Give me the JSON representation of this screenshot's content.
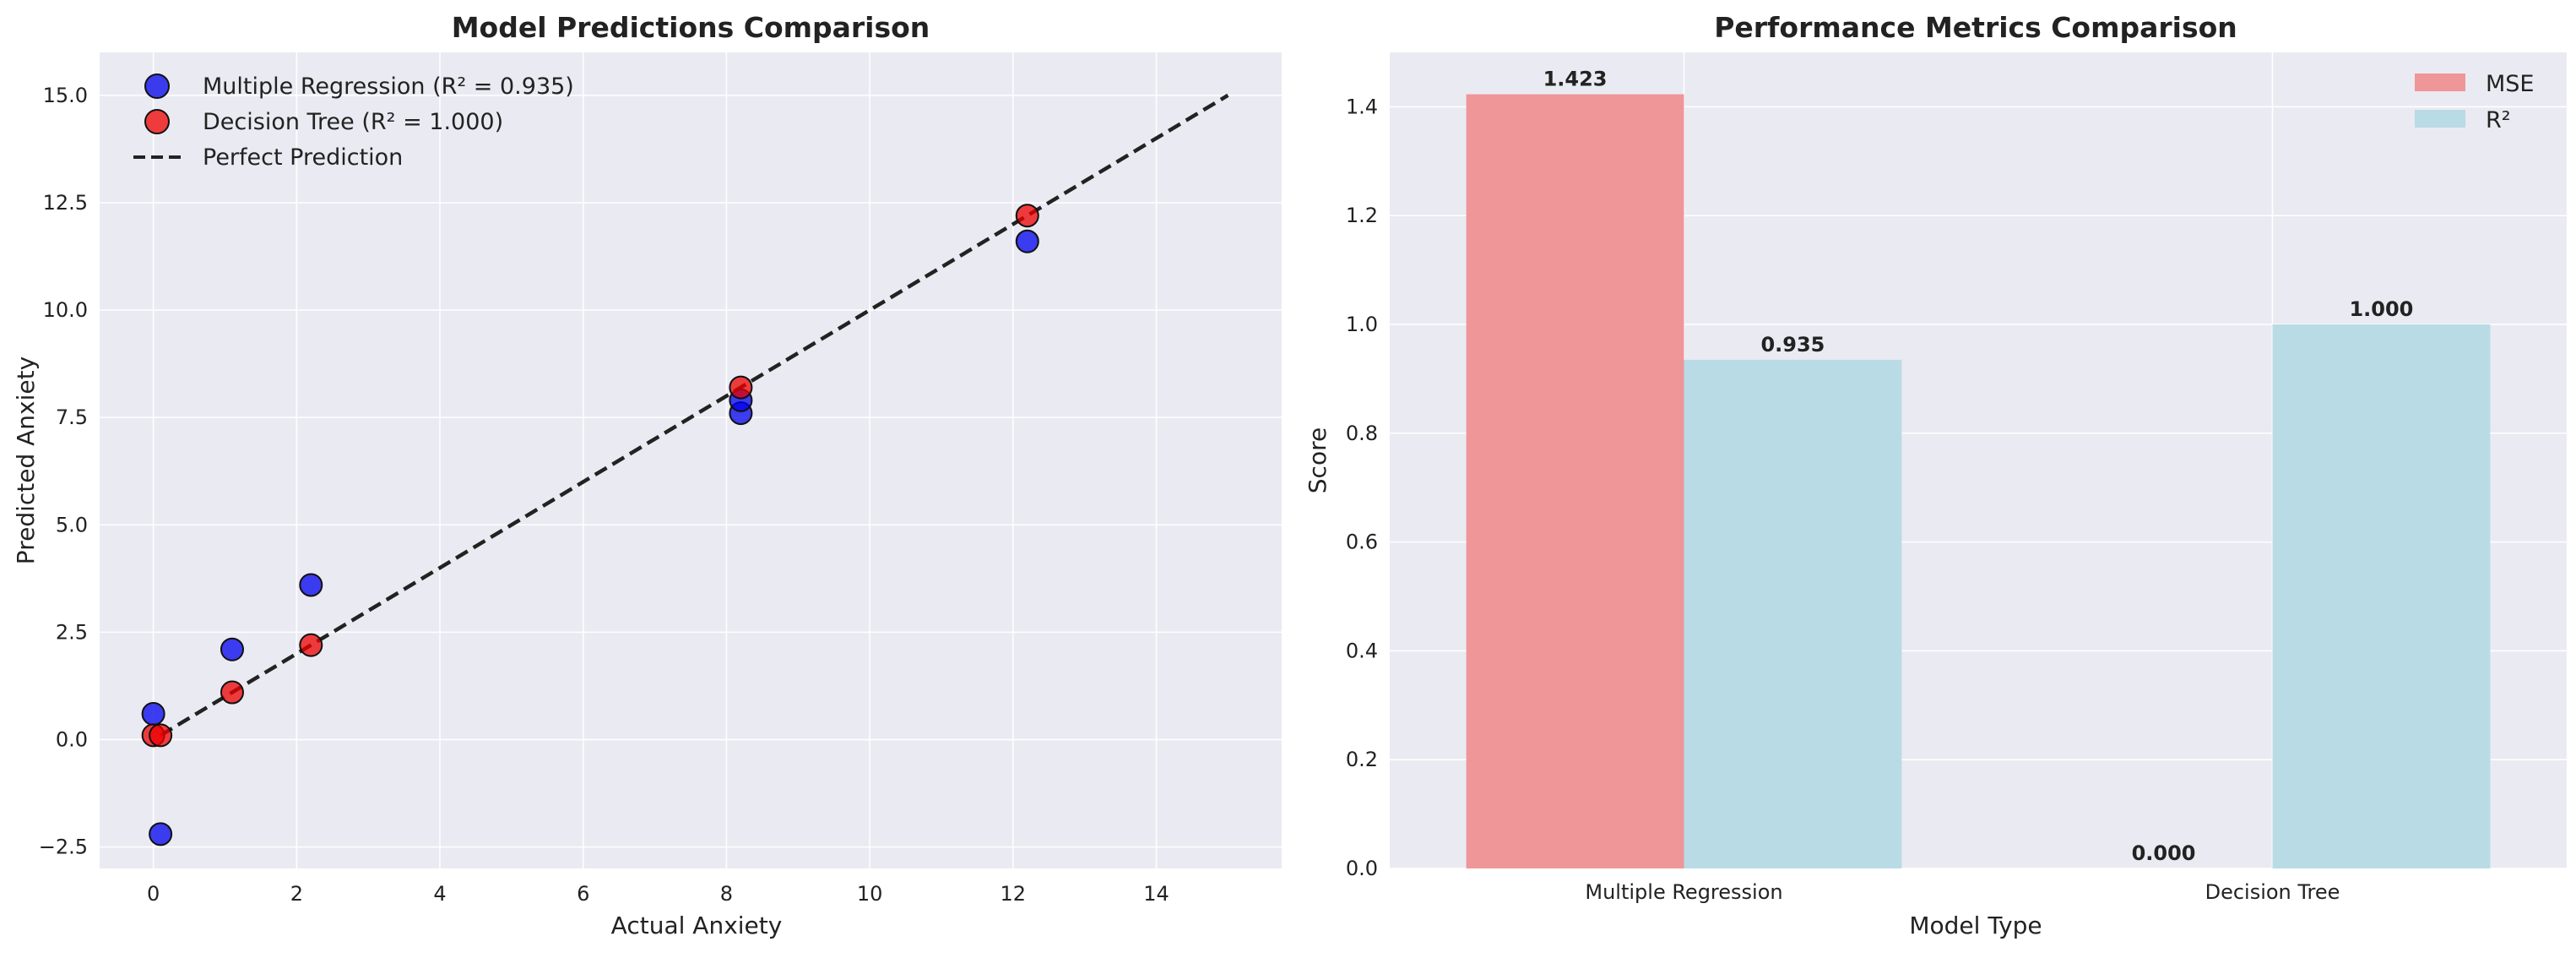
{
  "chart_data": [
    {
      "type": "scatter",
      "title": "Model Predictions Comparison",
      "xlabel": "Actual Anxiety",
      "ylabel": "Predicted Anxiety",
      "xlim": [
        -0.75,
        15.75
      ],
      "ylim": [
        -3.0,
        16.0
      ],
      "xticks": [
        0,
        2,
        4,
        6,
        8,
        10,
        12,
        14
      ],
      "yticks": [
        -2.5,
        0.0,
        2.5,
        5.0,
        7.5,
        10.0,
        12.5,
        15.0
      ],
      "xtick_labels": [
        "0",
        "2",
        "4",
        "6",
        "8",
        "10",
        "12",
        "14"
      ],
      "ytick_labels": [
        "−2.5",
        "0.0",
        "2.5",
        "5.0",
        "7.5",
        "10.0",
        "12.5",
        "15.0"
      ],
      "grid": true,
      "legend_position": "top-left",
      "series": [
        {
          "name": "Multiple Regression (R² = 0.935)",
          "color": "#0000ee",
          "points": [
            [
              0.0,
              0.6
            ],
            [
              0.1,
              -2.2
            ],
            [
              1.1,
              2.1
            ],
            [
              2.2,
              3.6
            ],
            [
              8.2,
              7.6
            ],
            [
              8.2,
              7.9
            ],
            [
              12.2,
              11.6
            ]
          ]
        },
        {
          "name": "Decision Tree (R² = 1.000)",
          "color": "#ee0000",
          "points": [
            [
              0.0,
              0.1
            ],
            [
              0.1,
              0.1
            ],
            [
              1.1,
              1.1
            ],
            [
              2.2,
              2.2
            ],
            [
              8.2,
              8.2
            ],
            [
              12.2,
              12.2
            ]
          ]
        },
        {
          "name": "Perfect Prediction",
          "style": "dashed-line",
          "color": "#222222",
          "points": [
            [
              0.1,
              0.1
            ],
            [
              15.0,
              15.0
            ]
          ]
        }
      ]
    },
    {
      "type": "bar",
      "title": "Performance Metrics Comparison",
      "xlabel": "Model Type",
      "ylabel": "Score",
      "ylim": [
        0,
        1.5
      ],
      "yticks": [
        0.0,
        0.2,
        0.4,
        0.6,
        0.8,
        1.0,
        1.2,
        1.4
      ],
      "ytick_labels": [
        "0.0",
        "0.2",
        "0.4",
        "0.6",
        "0.8",
        "1.0",
        "1.2",
        "1.4"
      ],
      "grid": true,
      "legend_position": "top-right",
      "categories": [
        "Multiple Regression",
        "Decision Tree"
      ],
      "series": [
        {
          "name": "MSE",
          "color": "#ee9698",
          "values": [
            1.423,
            0.0
          ],
          "labels": [
            "1.423",
            "0.000"
          ]
        },
        {
          "name": "R²",
          "color": "#b9dbe5",
          "values": [
            0.935,
            1.0
          ],
          "labels": [
            "0.935",
            "1.000"
          ]
        }
      ]
    }
  ]
}
